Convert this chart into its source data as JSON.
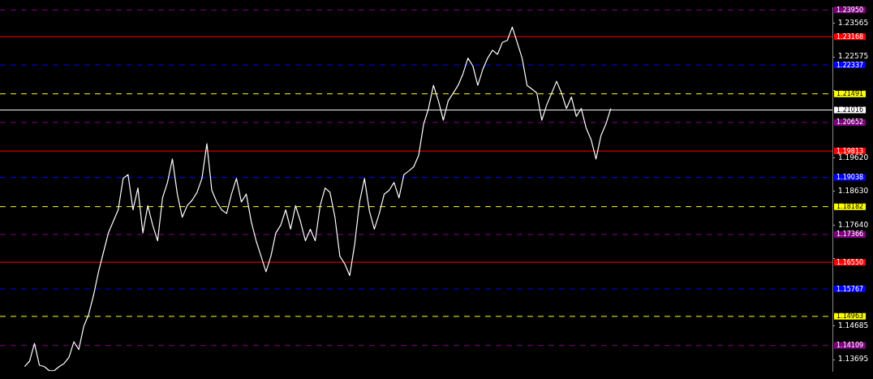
{
  "chart_data": {
    "type": "line",
    "categories": [
      null,
      null,
      null,
      null,
      null,
      null,
      null,
      null,
      null,
      null,
      null,
      null,
      null,
      null,
      null,
      null,
      null,
      null,
      null,
      null,
      null,
      null,
      null,
      null,
      null,
      null,
      null,
      null,
      null,
      null,
      null,
      null,
      null,
      null,
      null,
      null,
      null,
      null,
      null,
      null,
      null,
      null,
      null,
      null,
      null,
      null,
      null,
      null,
      null,
      null,
      null,
      null,
      null,
      null,
      null,
      null,
      null,
      null,
      null,
      null,
      null,
      null,
      null,
      null,
      null,
      null,
      null,
      null,
      null,
      null,
      null,
      null,
      null,
      null,
      null,
      null,
      null,
      null,
      null,
      null,
      null,
      null,
      null,
      null,
      null,
      null,
      null,
      null,
      null,
      null,
      null,
      null,
      null,
      null,
      null,
      null,
      null,
      null,
      null,
      null,
      null,
      null,
      null,
      null,
      null,
      null,
      null,
      null,
      null,
      null,
      null,
      null,
      null,
      null,
      null,
      null,
      null,
      null,
      null,
      null,
      null,
      null,
      null,
      null,
      null,
      null,
      null,
      null,
      null,
      null,
      null,
      null,
      null,
      null,
      null,
      null,
      null,
      null,
      null,
      null,
      null,
      null,
      null,
      null,
      null,
      null,
      null,
      null,
      null,
      null,
      null,
      null,
      null,
      null,
      null,
      null,
      null,
      null,
      null,
      null,
      null,
      null,
      null,
      null,
      null,
      null,
      null,
      null,
      null,
      null
    ],
    "series": [
      {
        "color": "#ffffff",
        "values": [
          null,
          null,
          null,
          null,
          null,
          1.1349,
          1.1365,
          1.1417,
          1.1353,
          1.1349,
          1.1337,
          1.1337,
          1.1349,
          1.1358,
          1.1376,
          1.1422,
          1.1399,
          1.1467,
          1.1502,
          1.1559,
          1.1627,
          1.1684,
          1.1741,
          1.1775,
          1.1809,
          1.1901,
          1.1912,
          1.1809,
          1.1873,
          1.1741,
          1.1821,
          1.1764,
          1.1718,
          1.1844,
          1.1889,
          1.1958,
          1.1855,
          1.1787,
          1.1821,
          1.1837,
          1.186,
          1.1901,
          1.2003,
          1.1866,
          1.1832,
          1.1809,
          1.1798,
          1.1855,
          1.1901,
          1.1832,
          1.1855,
          1.1775,
          1.1718,
          1.1673,
          1.1627,
          1.1673,
          1.1741,
          1.1764,
          1.1809,
          1.1752,
          1.1821,
          1.1775,
          1.1718,
          1.1752,
          1.1718,
          1.1821,
          1.1873,
          1.186,
          1.1787,
          1.1673,
          1.165,
          1.1616,
          1.1707,
          1.1832,
          1.1901,
          1.1805,
          1.1752,
          1.1798,
          1.1855,
          1.1866,
          1.1889,
          1.1844,
          1.1912,
          1.1923,
          1.1935,
          1.1969,
          1.206,
          1.2106,
          1.2174,
          1.2129,
          1.2072,
          1.2129,
          1.2151,
          1.2174,
          1.2208,
          1.2254,
          1.2231,
          1.2174,
          1.222,
          1.2254,
          1.2277,
          1.2265,
          1.23,
          1.2306,
          1.2345,
          1.23,
          1.2254,
          1.2174,
          1.2163,
          1.2151,
          1.2072,
          1.2117,
          1.2151,
          1.2186,
          1.2151,
          1.2106,
          1.214,
          1.2083,
          1.2106,
          1.2049,
          1.2015,
          1.1958,
          1.2026,
          1.206,
          1.2106,
          null,
          null,
          null,
          null,
          null,
          null,
          null,
          null,
          null,
          null,
          null,
          null,
          null,
          null,
          null,
          null,
          null,
          null,
          null,
          null,
          null,
          null,
          null,
          null,
          null,
          null,
          null,
          null,
          null,
          null,
          null,
          null,
          null,
          null,
          null,
          null,
          null,
          null,
          null,
          null,
          null,
          null,
          null,
          null,
          null
        ]
      }
    ],
    "ylim": [
      1.1335,
      1.2402
    ],
    "yticks": [
      1.13695,
      1.14685,
      {
        "value": 1.1665,
        "label": null
      },
      {
        "value": 1.1764,
        "label": "1.17640"
      },
      {
        "value": 1.1863,
        "label": "1.18630"
      },
      {
        "value": 1.1962,
        "label": "1.19620"
      },
      {
        "value": 1.21585,
        "label": null
      },
      1.22575,
      1.23565
    ],
    "ref_lines": [
      {
        "axis": "y",
        "value": 1.2395,
        "label": "1.23950",
        "color": "#800080",
        "line_style": "dashed"
      },
      {
        "axis": "y",
        "value": 1.23168,
        "label": "1.23168",
        "color": "#ff0000",
        "line_style": "solid"
      },
      {
        "axis": "y",
        "value": 1.22337,
        "label": "1.22337",
        "color": "#0000ff",
        "line_style": "dashed"
      },
      {
        "axis": "y",
        "value": 1.21491,
        "label": "1.21491",
        "color": "#ffff00",
        "line_style": "dashed"
      },
      {
        "axis": "y",
        "value": 1.21016,
        "label": "1.21016",
        "color": "#ffffff",
        "line_style": "solid"
      },
      {
        "axis": "y",
        "value": 1.20652,
        "label": "1.20652",
        "color": "#800080",
        "line_style": "dashed"
      },
      {
        "axis": "y",
        "value": 1.19813,
        "label": "1.19813",
        "color": "#ff0000",
        "line_style": "solid"
      },
      {
        "axis": "y",
        "value": 1.19038,
        "label": "1.19038",
        "color": "#0000ff",
        "line_style": "dashed"
      },
      {
        "axis": "y",
        "value": 1.18182,
        "label": "1.18182",
        "color": "#ffff00",
        "line_style": "dashed"
      },
      {
        "axis": "y",
        "value": 1.17366,
        "label": "1.17366",
        "color": "#800080",
        "line_style": "dashed"
      },
      {
        "axis": "y",
        "value": 1.1655,
        "label": "1.16550",
        "color": "#ff0000",
        "line_style": "solid"
      },
      {
        "axis": "y",
        "value": 1.15767,
        "label": "1.15767",
        "color": "#0000ff",
        "line_style": "dashed"
      },
      {
        "axis": "y",
        "value": 1.14963,
        "label": "1.14963",
        "color": "#ffff00",
        "line_style": "dashed"
      },
      {
        "axis": "y",
        "value": 1.14109,
        "label": "1.14109",
        "color": "#800080",
        "line_style": "dashed"
      }
    ]
  }
}
